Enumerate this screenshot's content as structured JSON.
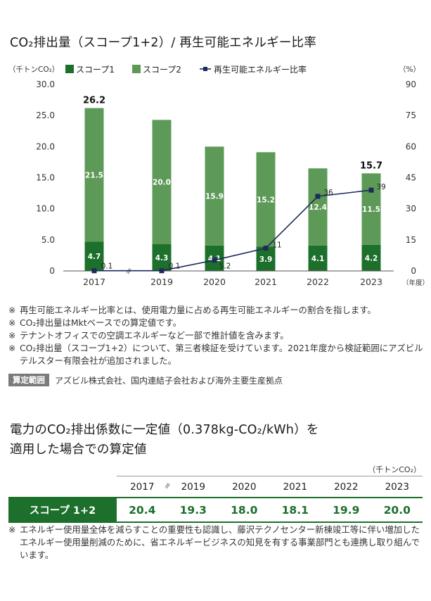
{
  "chart_title": "CO₂排出量（スコープ1+2）/ 再生可能エネルギー比率",
  "chart_data": {
    "type": "bar",
    "categories": [
      "2017",
      "2019",
      "2020",
      "2021",
      "2022",
      "2023"
    ],
    "x_unit": "（年度）",
    "left_axis": {
      "unit": "（千トンCO₂）",
      "ylim": [
        0,
        30
      ],
      "ticks": [
        "0",
        "5.0",
        "10.0",
        "15.0",
        "20.0",
        "25.0",
        "30.0"
      ]
    },
    "right_axis": {
      "unit": "（%）",
      "ylim": [
        0,
        90
      ],
      "ticks": [
        "0",
        "15",
        "30",
        "45",
        "60",
        "75",
        "90"
      ]
    },
    "series": [
      {
        "name": "スコープ1",
        "kind": "stacked-bar",
        "color": "#1d6f2c",
        "values": [
          4.7,
          4.3,
          4.1,
          3.9,
          4.1,
          4.2
        ],
        "labels": [
          "4.7",
          "4.3",
          "4.1",
          "3.9",
          "4.1",
          "4.2"
        ]
      },
      {
        "name": "スコープ2",
        "kind": "stacked-bar",
        "color": "#5d9a57",
        "values": [
          21.5,
          20.0,
          15.9,
          15.2,
          12.4,
          11.5
        ],
        "labels": [
          "21.5",
          "20.0",
          "15.9",
          "15.2",
          "12.4",
          "11.5"
        ]
      },
      {
        "name": "再生可能エネルギー比率",
        "kind": "line",
        "axis": "right",
        "color": "#1e2a5a",
        "values": [
          0.1,
          0.1,
          5.2,
          11,
          36,
          39
        ],
        "labels": [
          "0.1",
          "0.1",
          "5.2",
          "11",
          "36",
          "39"
        ]
      }
    ],
    "totals": [
      {
        "index": 0,
        "label": "26.2"
      },
      {
        "index": 5,
        "label": "15.7"
      }
    ],
    "axis_break_symbol": "≈",
    "grid": false,
    "legend_position": "top"
  },
  "notes": [
    {
      "mark": "※",
      "text": "再生可能エネルギー比率とは、使用電力量に占める再生可能エネルギーの割合を指します。"
    },
    {
      "mark": "※",
      "text": "CO₂排出量はMktベースでの算定値です。"
    },
    {
      "mark": "※",
      "text": "テナントオフィスでの空調エネルギーなど一部で推計値を含みます。"
    },
    {
      "mark": "※",
      "text": "CO₂排出量（スコープ1+2）について、第三者検証を受けています。2021年度から検証範囲にアズビルテルスター有限会社が追加されました。"
    }
  ],
  "scope": {
    "tag": "算定範囲",
    "text": "アズビル株式会社、国内連結子会社および海外主要生産拠点"
  },
  "table_section": {
    "title_line1": "電力のCO₂排出係数に一定値（0.378kg-CO₂/kWh）を",
    "title_line2": "適用した場合での算定値",
    "unit": "（千トンCO₂）",
    "break_symbol": "≈",
    "years": [
      "2017",
      "2019",
      "2020",
      "2021",
      "2022",
      "2023"
    ],
    "row_label": "スコープ 1+2",
    "values": [
      "20.4",
      "19.3",
      "18.0",
      "18.1",
      "19.9",
      "20.0"
    ]
  },
  "bottom_note": {
    "mark": "※",
    "text": "エネルギー使用量全体を減らすことの重要性も認識し、藤沢テクノセンター新棟竣工等に伴い増加したエネルギー使用量削減のために、省エネルギービジネスの知見を有する事業部門とも連携し取り組んでいます。"
  }
}
